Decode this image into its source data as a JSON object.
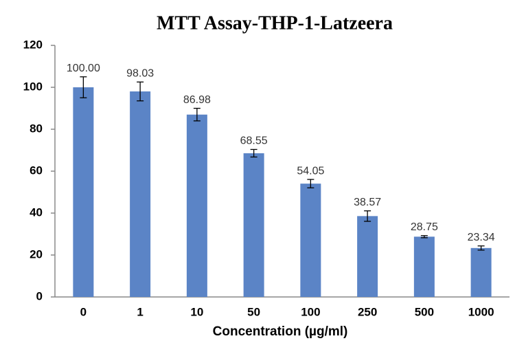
{
  "chart_data": {
    "type": "bar",
    "title": "MTT Assay-THP-1-Latzeera",
    "x_label": "Concentration (µg/ml)",
    "categories": [
      "0",
      "1",
      "10",
      "50",
      "100",
      "250",
      "500",
      "1000"
    ],
    "values": [
      100.0,
      98.03,
      86.98,
      68.55,
      54.05,
      38.57,
      28.75,
      23.34
    ],
    "value_labels": [
      "100.00",
      "98.03",
      "86.98",
      "68.55",
      "54.05",
      "38.57",
      "28.75",
      "23.34"
    ],
    "errors": [
      5,
      4.5,
      3,
      1.8,
      2,
      2.5,
      0.5,
      1
    ],
    "color": "#5b84c6",
    "ylim": [
      0,
      120
    ],
    "yticks": [
      0,
      20,
      40,
      60,
      80,
      100,
      120
    ],
    "grid": false
  }
}
